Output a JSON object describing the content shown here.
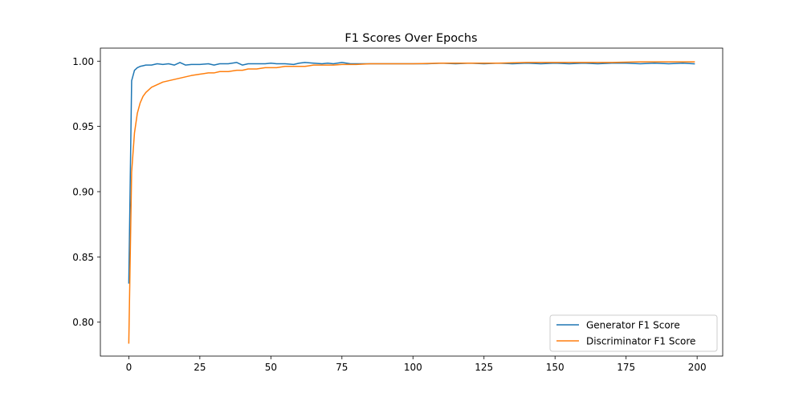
{
  "chart_data": {
    "type": "line",
    "title": "F1 Scores Over Epochs",
    "xlabel": "",
    "ylabel": "",
    "xlim": [
      -10,
      209
    ],
    "ylim": [
      0.774,
      1.01
    ],
    "grid": false,
    "legend_position": "lower-right",
    "x_ticks": [
      0,
      25,
      50,
      75,
      100,
      125,
      150,
      175,
      200
    ],
    "y_ticks": [
      0.8,
      0.85,
      0.9,
      0.95,
      1.0
    ],
    "y_tick_labels": [
      "0.80",
      "0.85",
      "0.90",
      "0.95",
      "1.00"
    ],
    "series": [
      {
        "name": "Generator F1 Score",
        "color": "#1f77b4",
        "x": [
          0,
          1,
          2,
          3,
          4,
          5,
          6,
          8,
          10,
          12,
          14,
          16,
          18,
          20,
          22,
          25,
          28,
          30,
          32,
          35,
          38,
          40,
          42,
          45,
          48,
          50,
          52,
          55,
          58,
          60,
          62,
          65,
          68,
          70,
          72,
          75,
          78,
          80,
          85,
          90,
          95,
          100,
          105,
          110,
          115,
          120,
          125,
          130,
          135,
          140,
          145,
          150,
          155,
          160,
          165,
          170,
          175,
          180,
          185,
          190,
          195,
          199
        ],
        "y": [
          0.83,
          0.985,
          0.993,
          0.995,
          0.996,
          0.9965,
          0.997,
          0.997,
          0.998,
          0.9975,
          0.998,
          0.997,
          0.999,
          0.997,
          0.9975,
          0.9975,
          0.998,
          0.997,
          0.998,
          0.998,
          0.999,
          0.997,
          0.998,
          0.998,
          0.998,
          0.9985,
          0.998,
          0.998,
          0.9975,
          0.9985,
          0.999,
          0.9985,
          0.998,
          0.9985,
          0.998,
          0.999,
          0.998,
          0.998,
          0.998,
          0.998,
          0.998,
          0.998,
          0.998,
          0.9985,
          0.998,
          0.9985,
          0.998,
          0.9985,
          0.998,
          0.9985,
          0.998,
          0.9985,
          0.998,
          0.9985,
          0.998,
          0.9985,
          0.9985,
          0.998,
          0.9985,
          0.998,
          0.9985,
          0.998
        ]
      },
      {
        "name": "Discriminator F1 Score",
        "color": "#ff7f0e",
        "x": [
          0,
          1,
          2,
          3,
          4,
          5,
          6,
          7,
          8,
          10,
          12,
          14,
          16,
          18,
          20,
          22,
          25,
          28,
          30,
          32,
          35,
          38,
          40,
          42,
          45,
          48,
          50,
          52,
          55,
          58,
          60,
          62,
          65,
          68,
          70,
          72,
          75,
          78,
          80,
          85,
          90,
          95,
          100,
          110,
          120,
          130,
          140,
          150,
          160,
          170,
          180,
          190,
          199
        ],
        "y": [
          0.784,
          0.915,
          0.945,
          0.96,
          0.968,
          0.973,
          0.976,
          0.978,
          0.98,
          0.982,
          0.984,
          0.985,
          0.986,
          0.987,
          0.988,
          0.989,
          0.99,
          0.991,
          0.991,
          0.992,
          0.992,
          0.993,
          0.993,
          0.994,
          0.994,
          0.995,
          0.995,
          0.995,
          0.996,
          0.996,
          0.996,
          0.996,
          0.997,
          0.997,
          0.997,
          0.997,
          0.9975,
          0.9975,
          0.9975,
          0.998,
          0.998,
          0.998,
          0.998,
          0.9985,
          0.9985,
          0.9985,
          0.999,
          0.999,
          0.999,
          0.999,
          0.9995,
          0.9995,
          0.9995
        ]
      }
    ]
  }
}
